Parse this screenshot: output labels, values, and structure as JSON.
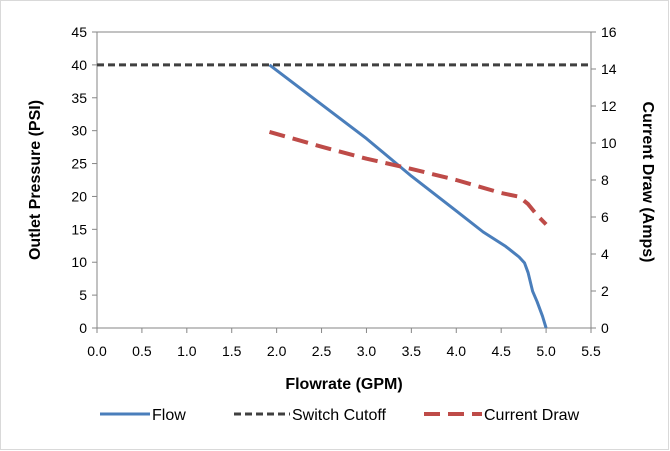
{
  "chart_data": {
    "type": "line",
    "xlabel": "Flowrate (GPM)",
    "ylabel": "Outlet Pressure (PSI)",
    "y2label": "Current Draw (Amps)",
    "xlim": [
      0.0,
      5.5
    ],
    "ylim": [
      0,
      45
    ],
    "y2lim": [
      0,
      16
    ],
    "x_ticks": [
      "0.0",
      "0.5",
      "1.0",
      "1.5",
      "2.0",
      "2.5",
      "3.0",
      "3.5",
      "4.0",
      "4.5",
      "5.0",
      "5.5"
    ],
    "y_ticks": [
      "0",
      "5",
      "10",
      "15",
      "20",
      "25",
      "30",
      "35",
      "40",
      "45"
    ],
    "y2_ticks": [
      "0",
      "2",
      "4",
      "6",
      "8",
      "10",
      "12",
      "14",
      "16"
    ],
    "grid": false,
    "legend_position": "bottom",
    "series": [
      {
        "name": "Flow",
        "axis": "left",
        "color": "#4a7ebb",
        "style": "solid",
        "x": [
          1.92,
          2.5,
          3.0,
          3.5,
          4.0,
          4.3,
          4.55,
          4.7,
          4.76,
          4.8,
          4.85,
          4.9,
          4.96,
          5.0
        ],
        "y": [
          40,
          34,
          28.8,
          23.1,
          17.8,
          14.6,
          12.4,
          10.8,
          9.9,
          8.4,
          5.6,
          4.0,
          1.8,
          0
        ]
      },
      {
        "name": "Switch Cutoff",
        "axis": "left",
        "color": "#404040",
        "style": "dashed",
        "x": [
          0.0,
          5.5
        ],
        "y": [
          40,
          40
        ]
      },
      {
        "name": "Current Draw",
        "axis": "right",
        "color": "#be4b48",
        "style": "longdash",
        "x": [
          1.92,
          2.5,
          3.0,
          3.5,
          4.0,
          4.5,
          4.7,
          4.8,
          4.9,
          5.0
        ],
        "y": [
          10.6,
          9.8,
          9.15,
          8.6,
          8.0,
          7.3,
          7.1,
          6.7,
          6.1,
          5.6
        ]
      }
    ]
  }
}
